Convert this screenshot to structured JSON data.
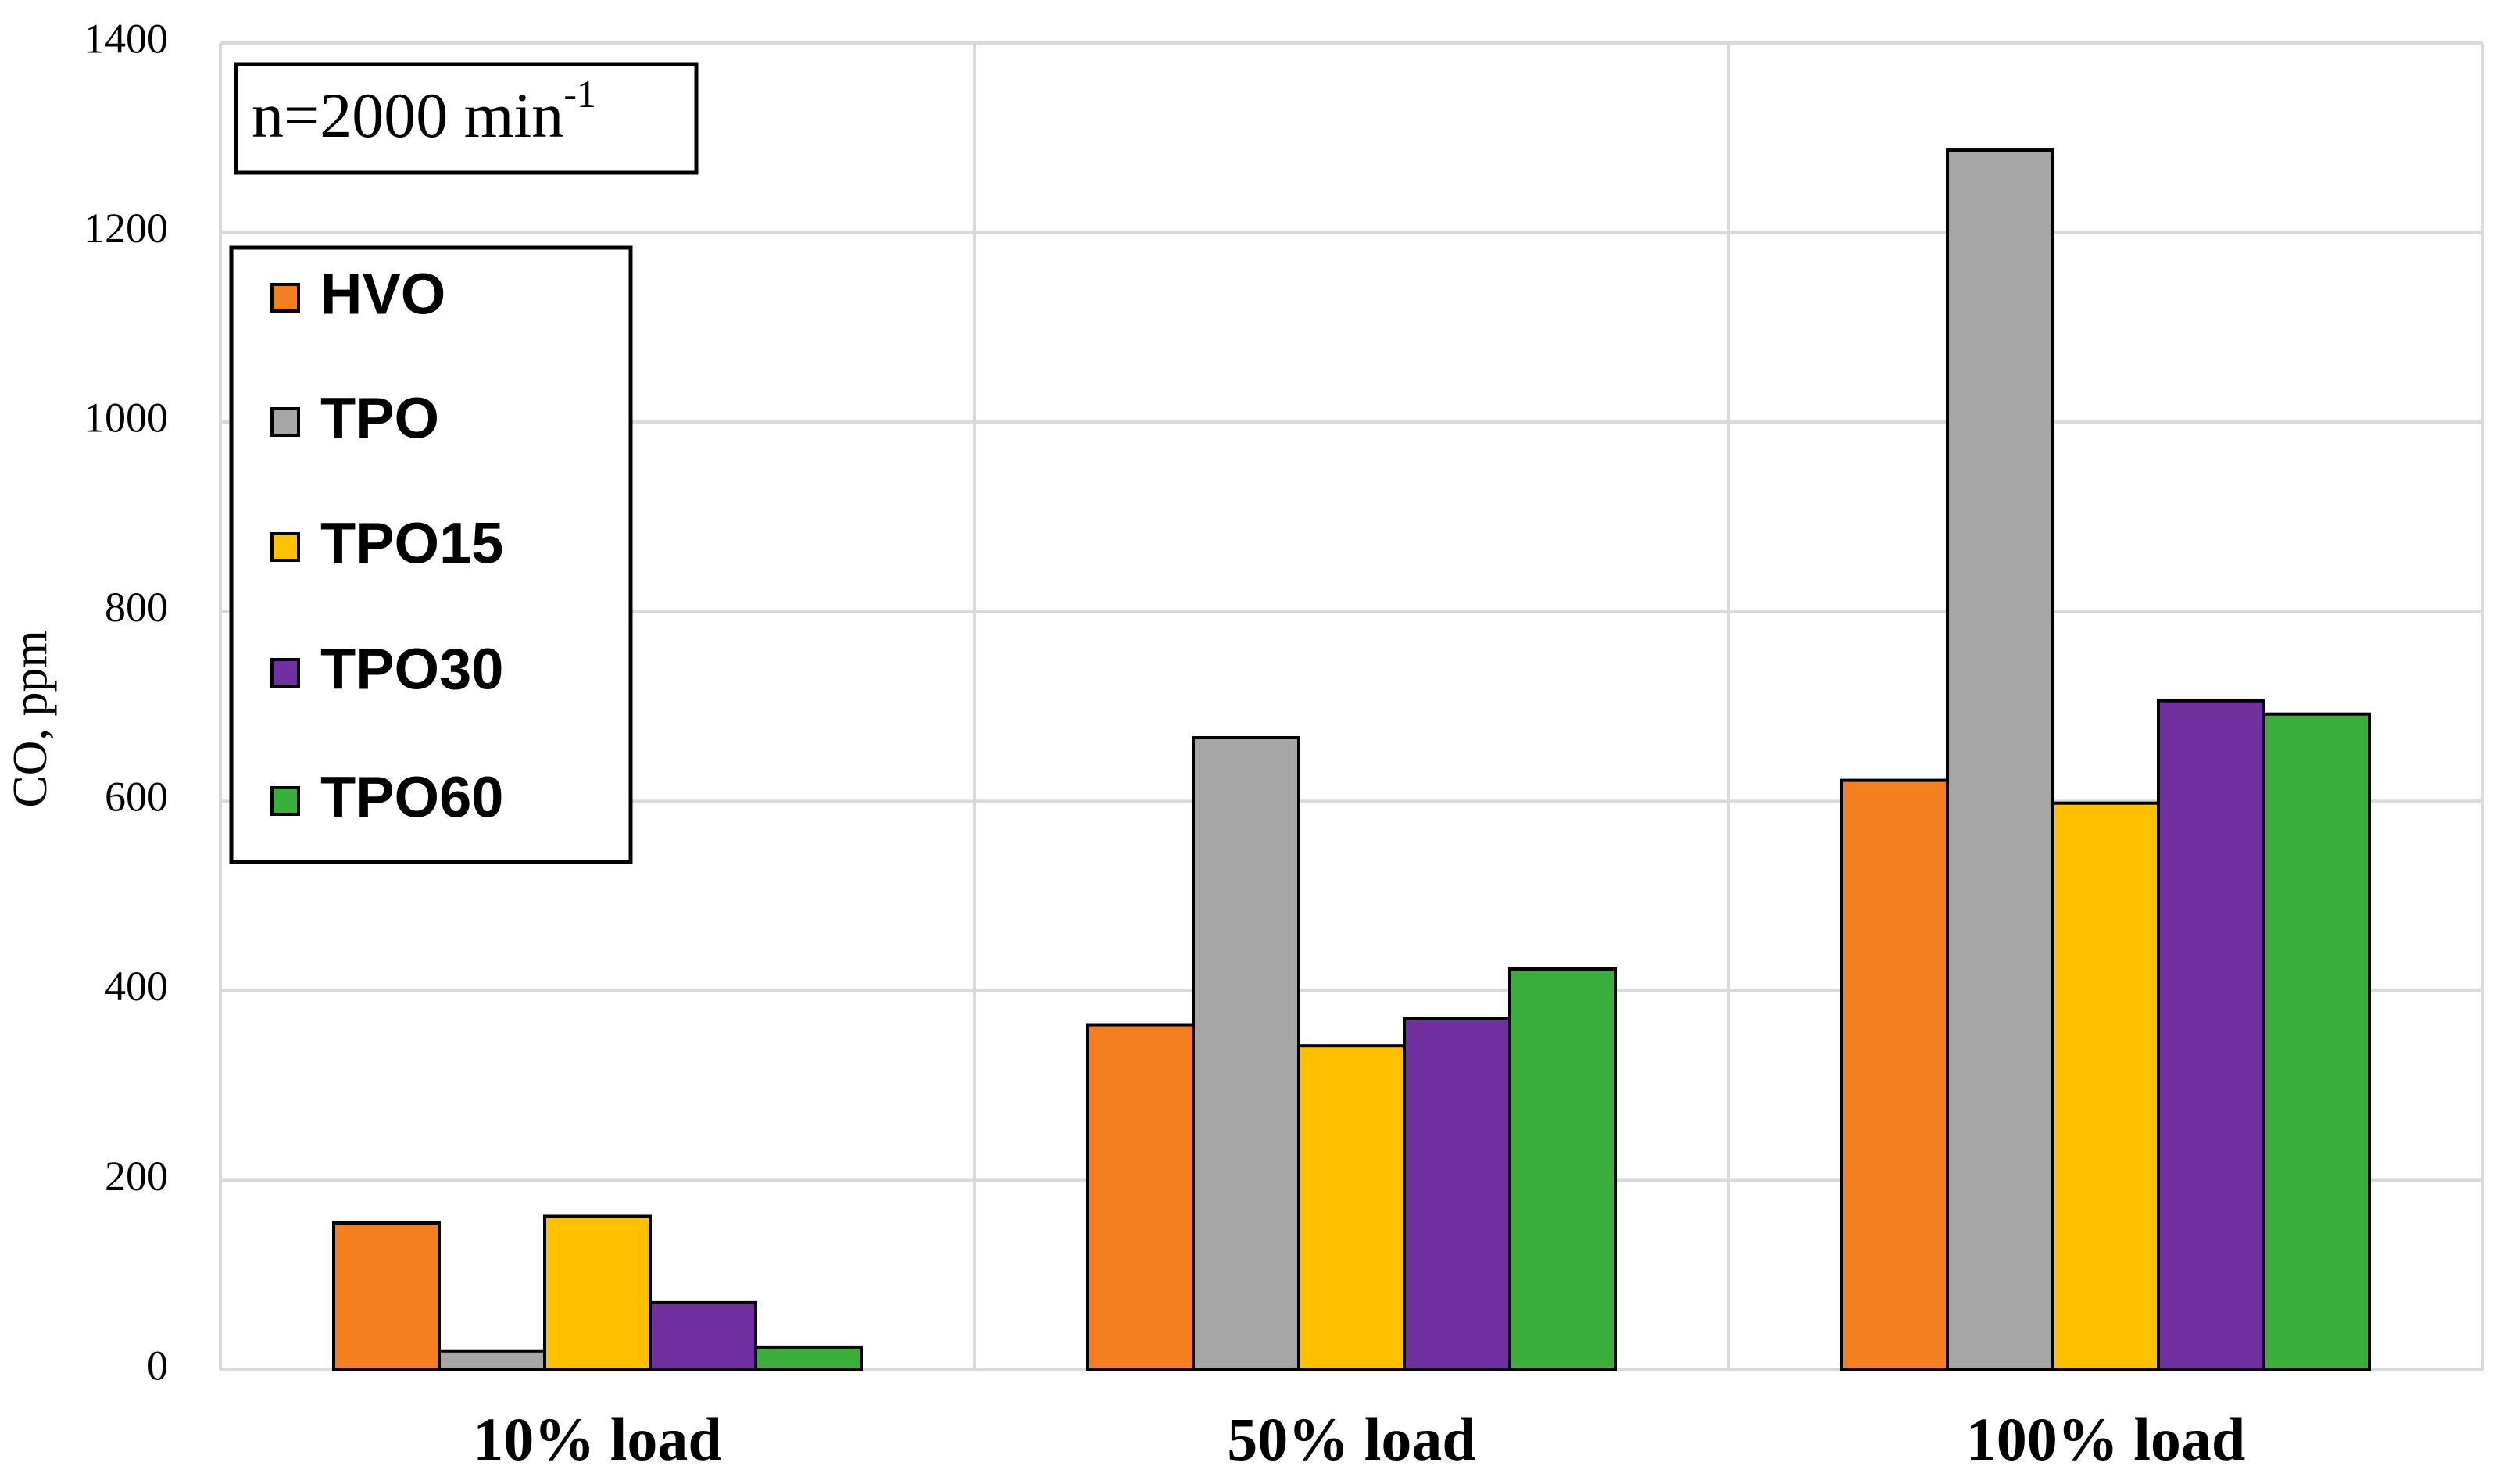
{
  "chart_data": {
    "type": "bar",
    "annotation": "n=2000 min",
    "annotation_superscript": "-1",
    "y_label": "CO, ppm",
    "categories": [
      "10% load",
      "50% load",
      "100% load"
    ],
    "series": [
      {
        "name": "HVO",
        "color": "#f47f20",
        "values": [
          155,
          364,
          622
        ]
      },
      {
        "name": "TPO",
        "color": "#a6a6a6",
        "values": [
          20,
          667,
          1287
        ]
      },
      {
        "name": "TPO15",
        "color": "#ffc000",
        "values": [
          162,
          342,
          598
        ]
      },
      {
        "name": "TPO30",
        "color": "#7030a0",
        "values": [
          71,
          371,
          706
        ]
      },
      {
        "name": "TPO60",
        "color": "#3cae3c",
        "values": [
          24,
          423,
          692
        ]
      }
    ],
    "ylim": [
      0,
      1400
    ],
    "yticks": [
      0,
      200,
      400,
      600,
      800,
      1000,
      1200,
      1400
    ],
    "grid": true,
    "legend": "upper left"
  }
}
